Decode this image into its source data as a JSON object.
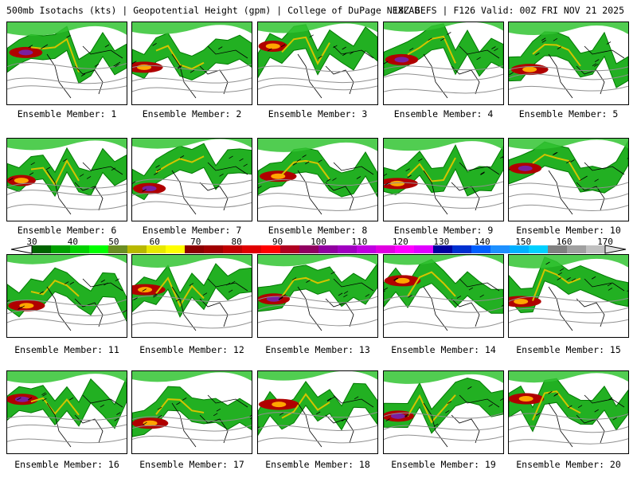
{
  "header": {
    "left_text": "500mb Isotachs (kts) | Geopotential Height (gpm) | College of DuPage NEXLAB",
    "right_text": "18Z GEFS | F126 Valid: 00Z FRI NOV 21 2025"
  },
  "members": [
    {
      "label": "Ensemble Member: 1"
    },
    {
      "label": "Ensemble Member: 2"
    },
    {
      "label": "Ensemble Member: 3"
    },
    {
      "label": "Ensemble Member: 4"
    },
    {
      "label": "Ensemble Member: 5"
    },
    {
      "label": "Ensemble Member: 6"
    },
    {
      "label": "Ensemble Member: 7"
    },
    {
      "label": "Ensemble Member: 8"
    },
    {
      "label": "Ensemble Member: 9"
    },
    {
      "label": "Ensemble Member: 10"
    },
    {
      "label": "Ensemble Member: 11"
    },
    {
      "label": "Ensemble Member: 12"
    },
    {
      "label": "Ensemble Member: 13"
    },
    {
      "label": "Ensemble Member: 14"
    },
    {
      "label": "Ensemble Member: 15"
    },
    {
      "label": "Ensemble Member: 16"
    },
    {
      "label": "Ensemble Member: 17"
    },
    {
      "label": "Ensemble Member: 18"
    },
    {
      "label": "Ensemble Member: 19"
    },
    {
      "label": "Ensemble Member: 20"
    }
  ],
  "colorbar": {
    "ticks": [
      "30",
      "40",
      "50",
      "60",
      "70",
      "80",
      "90",
      "100",
      "110",
      "120",
      "130",
      "140",
      "150",
      "160",
      "170"
    ],
    "colors": [
      "#006400",
      "#00a000",
      "#00d000",
      "#00ff00",
      "#6b8e23",
      "#b8b800",
      "#e8e800",
      "#ffff00",
      "#8b0000",
      "#a00000",
      "#c00000",
      "#e00000",
      "#ff0000",
      "#b00020",
      "#900060",
      "#9000a0",
      "#a000c0",
      "#c000e0",
      "#e000e0",
      "#ff00ff",
      "#e000ff",
      "#0000a0",
      "#0030d0",
      "#0060ff",
      "#1e90ff",
      "#00b0ff",
      "#00d0ff",
      "#808080",
      "#a0a0a0",
      "#c0c0c0"
    ]
  }
}
